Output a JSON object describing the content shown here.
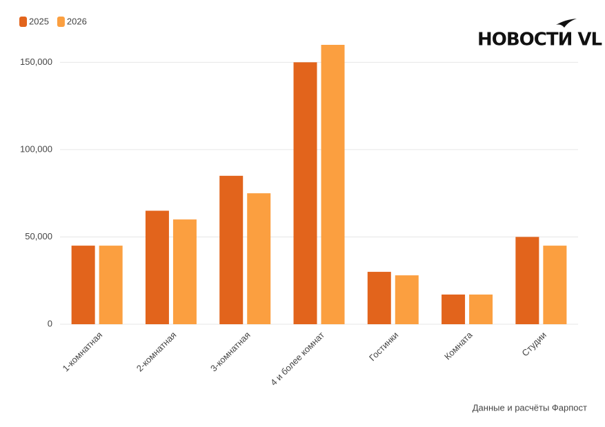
{
  "chart_data": {
    "type": "bar",
    "logo": "НОВОСТИ VL",
    "source": "Данные и расчёты Фарпост",
    "categories": [
      "1-комнатная",
      "2-комнатная",
      "3-комнатная",
      "4 и более комнат",
      "Гостинки",
      "Комната",
      "Студии"
    ],
    "series": [
      {
        "name": "2025",
        "color": "#e2641c",
        "values": [
          45000,
          65000,
          85000,
          150000,
          30000,
          17000,
          50000
        ]
      },
      {
        "name": "2026",
        "color": "#fb9f40",
        "values": [
          45000,
          60000,
          75000,
          160000,
          28000,
          17000,
          45000
        ]
      }
    ],
    "ylim": [
      0,
      160000
    ],
    "yticks": [
      0,
      {
        "value": 50000,
        "label": "50,000"
      },
      {
        "value": 100000,
        "label": "100,000"
      },
      {
        "value": 150000,
        "label": "150,000"
      }
    ],
    "grid": true,
    "legend": "top-left"
  }
}
